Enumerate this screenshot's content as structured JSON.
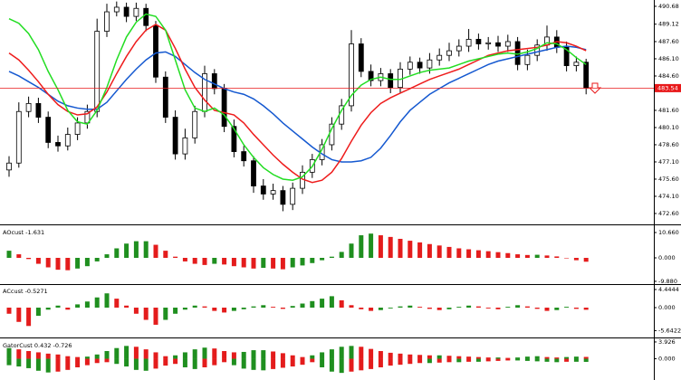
{
  "chart_data": [
    {
      "type": "candlestick",
      "open": [
        476.4,
        477.0,
        481.5,
        482.2,
        481.0,
        478.8,
        478.5,
        479.5,
        480.5,
        481.5,
        488.5,
        490.2,
        490.6,
        489.8,
        490.5,
        489.0,
        484.5,
        481.0,
        477.8,
        479.2,
        481.5,
        484.8,
        483.5,
        480.2,
        478.0,
        477.2,
        475.0,
        474.3,
        474.6,
        473.4,
        474.8,
        476.2,
        477.3,
        478.6,
        480.4,
        482.0,
        487.4,
        485.0,
        484.2,
        484.8,
        483.6,
        485.2,
        485.8,
        485.3,
        486.0,
        486.4,
        486.8,
        487.2,
        487.8,
        487.4,
        487.5,
        487.2,
        487.6,
        485.6,
        486.4,
        487.3,
        488.0,
        487.1,
        485.5,
        485.8
      ],
      "high": [
        477.6,
        482.3,
        482.8,
        482.7,
        481.5,
        479.4,
        480.1,
        481.0,
        482.1,
        489.6,
        490.9,
        491.1,
        491.0,
        491.0,
        490.9,
        489.4,
        485.0,
        481.6,
        480.0,
        482.0,
        485.5,
        485.2,
        483.9,
        480.8,
        478.5,
        477.6,
        475.6,
        475.2,
        475.0,
        475.3,
        476.8,
        477.8,
        479.1,
        481.0,
        482.6,
        488.6,
        487.9,
        485.6,
        485.3,
        485.2,
        485.8,
        486.3,
        486.2,
        486.6,
        487.0,
        487.5,
        487.8,
        488.7,
        488.3,
        488.0,
        488.1,
        488.2,
        488.0,
        486.9,
        487.8,
        489.0,
        488.6,
        487.6,
        486.3,
        486.1
      ],
      "low": [
        475.8,
        476.6,
        481.0,
        480.5,
        478.3,
        478.0,
        478.1,
        479.0,
        480.0,
        481.0,
        488.0,
        489.8,
        489.3,
        489.4,
        488.5,
        484.0,
        480.5,
        477.3,
        477.3,
        478.7,
        481.0,
        483.0,
        479.7,
        477.5,
        476.7,
        474.4,
        473.8,
        473.8,
        472.8,
        472.9,
        474.3,
        475.7,
        476.8,
        478.1,
        479.9,
        481.5,
        484.5,
        483.7,
        483.7,
        483.1,
        483.1,
        484.7,
        484.8,
        484.8,
        485.5,
        485.9,
        486.3,
        486.7,
        486.9,
        486.9,
        486.7,
        486.7,
        485.1,
        485.1,
        485.9,
        486.8,
        486.6,
        485.0,
        485.0,
        483.0
      ],
      "close": [
        477.0,
        481.5,
        482.2,
        481.0,
        478.8,
        478.5,
        479.5,
        480.5,
        481.5,
        488.5,
        490.2,
        490.6,
        489.8,
        490.5,
        489.0,
        484.5,
        481.0,
        477.8,
        479.2,
        481.5,
        484.8,
        483.5,
        480.2,
        478.0,
        477.2,
        475.0,
        474.3,
        474.6,
        473.4,
        474.8,
        476.2,
        477.3,
        478.6,
        480.4,
        482.0,
        487.4,
        485.0,
        484.2,
        484.8,
        483.6,
        485.2,
        485.8,
        485.3,
        486.0,
        486.4,
        486.8,
        487.2,
        487.8,
        487.4,
        487.5,
        487.2,
        487.6,
        485.6,
        486.4,
        487.3,
        488.0,
        487.1,
        485.5,
        485.8,
        483.54
      ],
      "series": [
        {
          "color": "#1458d0",
          "values": [
            485.0,
            484.6,
            484.1,
            483.6,
            483.0,
            482.4,
            482.0,
            481.8,
            481.7,
            481.7,
            482.3,
            483.3,
            484.3,
            485.2,
            486.0,
            486.6,
            486.7,
            486.3,
            485.6,
            484.9,
            484.3,
            483.9,
            483.5,
            483.2,
            483.0,
            482.6,
            482.0,
            481.3,
            480.5,
            479.8,
            479.1,
            478.4,
            477.8,
            477.3,
            477.1,
            477.1,
            477.2,
            477.5,
            478.3,
            479.4,
            480.6,
            481.6,
            482.3,
            483.0,
            483.5,
            484.0,
            484.4,
            484.8,
            485.2,
            485.6,
            485.9,
            486.1,
            486.3,
            486.5,
            486.7,
            486.9,
            487.1,
            487.2,
            487.1,
            486.9
          ]
        },
        {
          "color": "#ee1c1c",
          "values": [
            486.6,
            486.0,
            485.1,
            484.1,
            483.0,
            482.1,
            481.5,
            481.2,
            481.3,
            481.9,
            483.2,
            484.8,
            486.3,
            487.6,
            488.6,
            489.1,
            488.6,
            487.0,
            485.2,
            483.6,
            482.5,
            481.6,
            481.4,
            481.2,
            480.5,
            479.5,
            478.6,
            477.7,
            476.9,
            476.2,
            475.6,
            475.3,
            475.5,
            476.2,
            477.4,
            478.9,
            480.3,
            481.4,
            482.2,
            482.7,
            483.1,
            483.5,
            483.9,
            484.3,
            484.6,
            484.9,
            485.2,
            485.6,
            486.0,
            486.4,
            486.6,
            486.8,
            486.9,
            487.0,
            487.1,
            487.3,
            487.6,
            487.5,
            487.2,
            486.8
          ]
        },
        {
          "color": "#22dd22",
          "values": [
            489.6,
            489.2,
            488.3,
            486.9,
            485.0,
            483.4,
            481.6,
            480.6,
            480.4,
            481.6,
            483.6,
            486.0,
            488.0,
            489.3,
            490.0,
            489.8,
            488.6,
            486.0,
            483.4,
            481.8,
            481.5,
            481.8,
            481.2,
            480.0,
            478.6,
            477.5,
            476.6,
            476.0,
            475.6,
            475.5,
            475.8,
            476.7,
            478.2,
            480.0,
            481.6,
            482.9,
            483.8,
            484.3,
            484.5,
            484.3,
            484.3,
            484.6,
            484.9,
            485.1,
            485.2,
            485.3,
            485.6,
            485.9,
            486.1,
            486.3,
            486.5,
            486.6,
            486.5,
            486.7,
            487.0,
            487.5,
            487.4,
            486.9,
            486.2,
            485.6
          ]
        }
      ],
      "current_price": 483.54,
      "current_price_color": "#e8191a",
      "ylim": [
        471.65,
        491.23
      ],
      "yticks": [
        490.68,
        489.12,
        {
          "value": 487.6,
          "label": "487.60"
        },
        {
          "value": 486.1,
          "label": "486.10"
        },
        {
          "value": 484.6,
          "label": "484.60"
        },
        {
          "value": 481.6,
          "label": "481.60"
        },
        {
          "value": 480.1,
          "label": "480.10"
        },
        {
          "value": 478.6,
          "label": "478.60"
        },
        {
          "value": 477.1,
          "label": "477.10"
        },
        {
          "value": 475.6,
          "label": "475.60"
        },
        {
          "value": 474.1,
          "label": "474.10"
        },
        {
          "value": 472.6,
          "label": "472.60"
        }
      ]
    },
    {
      "type": "bar",
      "title": "AOcust -1.631",
      "up_color": "#1f8f1f",
      "down_color": "#e41c1c",
      "values": [
        3.0,
        1.5,
        -0.5,
        -2.5,
        -4.0,
        -5.0,
        -5.2,
        -4.5,
        -3.5,
        -1.5,
        1.5,
        4.0,
        6.0,
        7.0,
        7.0,
        5.5,
        3.0,
        0.5,
        -1.5,
        -2.5,
        -3.0,
        -2.5,
        -2.8,
        -3.5,
        -4.0,
        -4.5,
        -4.2,
        -4.5,
        -4.8,
        -4.0,
        -3.2,
        -2.2,
        -1.0,
        0.5,
        2.5,
        6.0,
        9.5,
        10.2,
        9.5,
        8.8,
        8.0,
        7.2,
        6.5,
        5.8,
        5.2,
        4.6,
        4.0,
        3.6,
        3.2,
        2.8,
        2.4,
        2.0,
        1.5,
        1.2,
        1.3,
        1.0,
        0.6,
        -0.2,
        -1.0,
        -1.631
      ],
      "ylim": [
        -10.66,
        13.32
      ],
      "yticks": [
        {
          "value": 10.66,
          "label": "10.660"
        },
        {
          "value": 0,
          "label": "0.000"
        },
        {
          "value": -9.88,
          "label": "-9.880"
        }
      ]
    },
    {
      "type": "bar",
      "title": "ACcust -0.5271",
      "up_color": "#1f8f1f",
      "down_color": "#e41c1c",
      "values": [
        -1.5,
        -3.5,
        -4.5,
        -2.0,
        -0.5,
        0.5,
        -0.5,
        0.8,
        1.5,
        2.5,
        3.5,
        2.2,
        0.5,
        -1.5,
        -3.0,
        -4.2,
        -3.0,
        -1.5,
        -0.5,
        0.5,
        0.3,
        -0.8,
        -1.2,
        -0.8,
        -0.4,
        0.3,
        0.6,
        0.2,
        -0.3,
        0.4,
        1.0,
        1.6,
        2.2,
        2.8,
        1.8,
        0.6,
        -0.4,
        -0.8,
        -0.6,
        -0.2,
        0.3,
        0.5,
        0.2,
        -0.3,
        -0.6,
        -0.4,
        0.2,
        0.5,
        0.3,
        -0.2,
        -0.4,
        0.2,
        0.6,
        0.3,
        -0.3,
        -0.8,
        -0.6,
        0.2,
        -0.3,
        -0.5271
      ],
      "ylim": [
        -7.1,
        5.55
      ],
      "yticks": [
        4.4444,
        {
          "value": 0,
          "label": "0.000"
        },
        -5.6422
      ]
    },
    {
      "type": "gator",
      "title": "GatorCust 0.432 -0.726",
      "up_color": "#1f8f1f",
      "down_color": "#e41c1c",
      "series": [
        {
          "values": [
            2.5,
            2.2,
            1.8,
            1.5,
            1.2,
            1.0,
            0.6,
            0.4,
            0.5,
            1.0,
            1.8,
            2.5,
            3.0,
            2.8,
            2.2,
            1.5,
            0.6,
            0.8,
            1.5,
            2.2,
            2.6,
            2.4,
            1.8,
            1.5,
            1.6,
            2.0,
            2.0,
            1.7,
            1.3,
            0.8,
            0.4,
            0.8,
            1.5,
            2.2,
            2.8,
            3.0,
            2.8,
            2.3,
            1.8,
            1.4,
            1.2,
            1.0,
            0.9,
            0.8,
            0.8,
            0.7,
            0.6,
            0.5,
            0.4,
            0.3,
            0.3,
            0.2,
            0.3,
            0.5,
            0.6,
            0.4,
            0.3,
            0.4,
            0.5,
            0.432
          ]
        },
        {
          "values": [
            -1.5,
            -1.8,
            -2.2,
            -2.8,
            -3.2,
            -3.0,
            -2.6,
            -2.0,
            -1.5,
            -1.0,
            -0.8,
            -1.2,
            -1.8,
            -2.6,
            -2.8,
            -2.3,
            -1.6,
            -1.2,
            -2.0,
            -2.4,
            -2.0,
            -1.5,
            -0.8,
            -1.5,
            -2.3,
            -2.6,
            -2.7,
            -2.4,
            -2.1,
            -1.8,
            -1.4,
            -0.8,
            -2.0,
            -3.0,
            -3.3,
            -3.0,
            -2.7,
            -2.4,
            -2.0,
            -1.6,
            -1.4,
            -1.2,
            -1.0,
            -1.0,
            -0.9,
            -0.8,
            -0.8,
            -0.7,
            -0.7,
            -0.6,
            -0.5,
            -0.4,
            -0.4,
            -0.5,
            -0.6,
            -0.7,
            -0.8,
            -0.7,
            -0.7,
            -0.726
          ]
        }
      ],
      "ylim": [
        -4.96,
        4.55
      ],
      "yticks": [
        3.926,
        {
          "value": 0,
          "label": "0.000"
        }
      ]
    }
  ]
}
